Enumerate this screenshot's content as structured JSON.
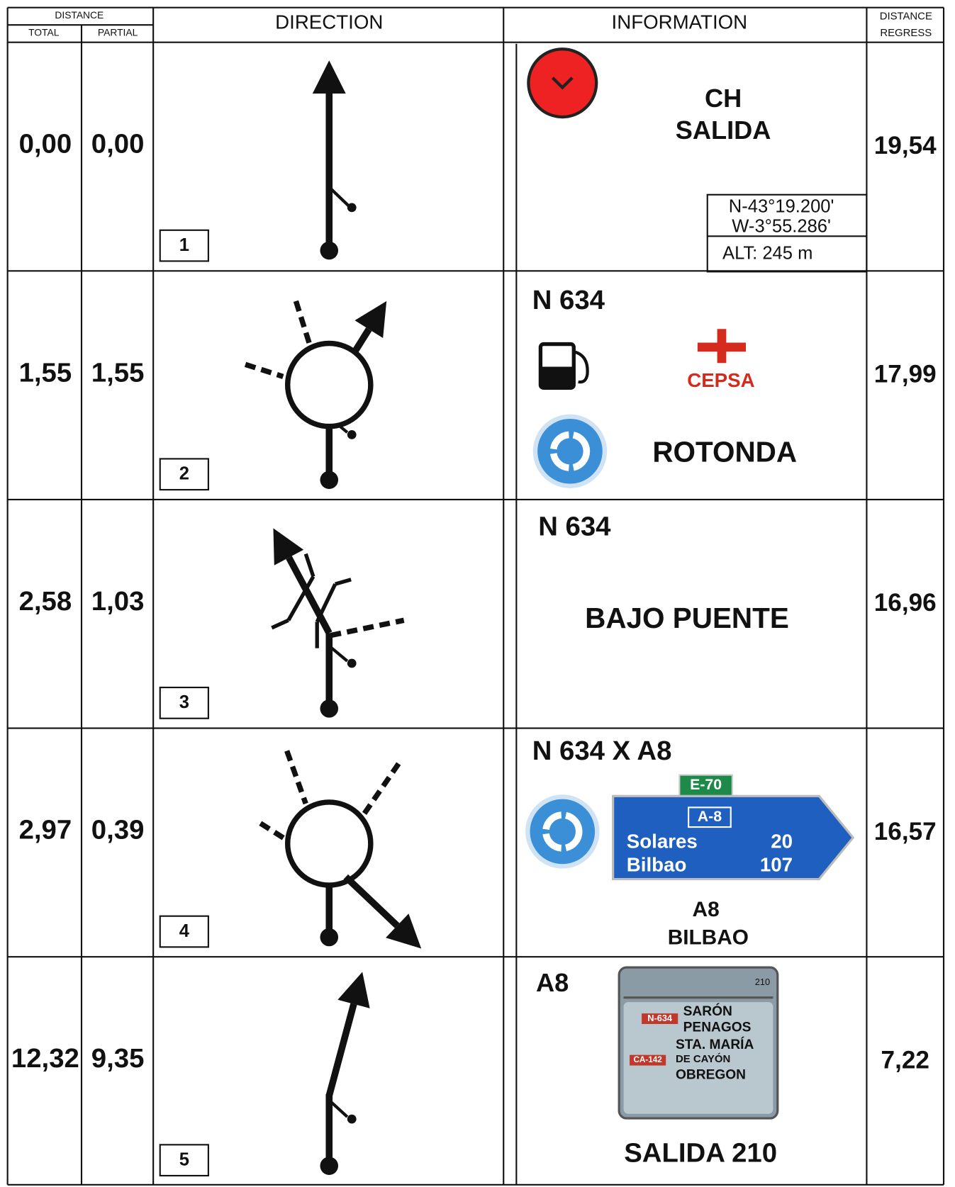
{
  "header": {
    "distance": "DISTANCE",
    "total": "TOTAL",
    "partial": "PARTIAL",
    "direction": "DIRECTION",
    "information": "INFORMATION",
    "regress": [
      "DISTANCE",
      "REGRESS"
    ]
  },
  "rows": [
    {
      "total": "0,00",
      "partial": "0,00",
      "number": "1",
      "regress": "19,54",
      "info": {
        "title1": "CH",
        "title2": "SALIDA",
        "lat": "N-43°19.200'",
        "lon": "W-3°55.286'",
        "alt": "ALT: 245 m"
      }
    },
    {
      "total": "1,55",
      "partial": "1,55",
      "number": "2",
      "regress": "17,99",
      "info": {
        "road": "N 634",
        "brand": "CEPSA",
        "label": "ROTONDA"
      }
    },
    {
      "total": "2,58",
      "partial": "1,03",
      "number": "3",
      "regress": "16,96",
      "info": {
        "road": "N 634",
        "label": "BAJO PUENTE"
      }
    },
    {
      "total": "2,97",
      "partial": "0,39",
      "number": "4",
      "regress": "16,57",
      "info": {
        "road": "N 634 X A8",
        "euro": "E-70",
        "motorway": "A-8",
        "dest1": "Solares",
        "km1": "20",
        "dest2": "Bilbao",
        "km2": "107",
        "title1": "A8",
        "title2": "BILBAO"
      }
    },
    {
      "total": "12,32",
      "partial": "9,35",
      "number": "5",
      "regress": "7,22",
      "info": {
        "road": "A8",
        "exit": "210",
        "road1": "N-634",
        "place1": "SARÓN",
        "place2": "PENAGOS",
        "place3": "STA. MARÍA",
        "road2": "CA-142",
        "place4": "DE CAYÓN",
        "place5": "OBREGON",
        "label": "SALIDA 210"
      }
    }
  ]
}
